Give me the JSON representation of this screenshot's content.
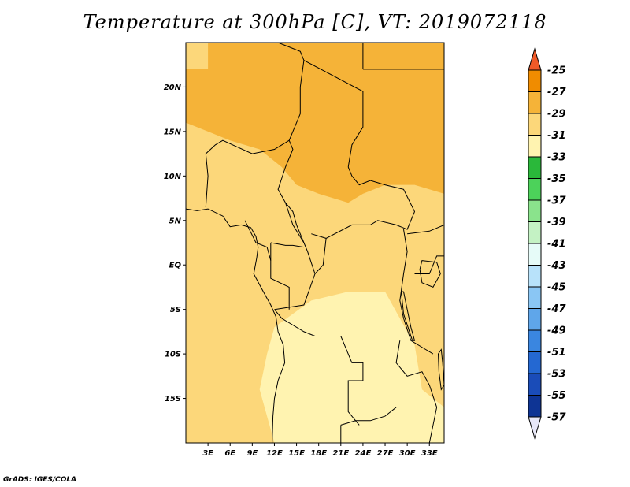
{
  "title": "Temperature at 300hPa [C], VT: 2019072118",
  "credit": "GrADS: IGES/COLA",
  "map": {
    "lon_range": [
      0,
      35
    ],
    "lat_range": [
      -20,
      25
    ],
    "lat_ticks": [
      {
        "value": 20,
        "label": "20N"
      },
      {
        "value": 15,
        "label": "15N"
      },
      {
        "value": 10,
        "label": "10N"
      },
      {
        "value": 5,
        "label": "5N"
      },
      {
        "value": 0,
        "label": "EQ"
      },
      {
        "value": -5,
        "label": "5S"
      },
      {
        "value": -10,
        "label": "10S"
      },
      {
        "value": -15,
        "label": "15S"
      }
    ],
    "lon_ticks": [
      {
        "value": 3,
        "label": "3E"
      },
      {
        "value": 6,
        "label": "6E"
      },
      {
        "value": 9,
        "label": "9E"
      },
      {
        "value": 12,
        "label": "12E"
      },
      {
        "value": 15,
        "label": "15E"
      },
      {
        "value": 18,
        "label": "18E"
      },
      {
        "value": 21,
        "label": "21E"
      },
      {
        "value": 24,
        "label": "24E"
      },
      {
        "value": 27,
        "label": "27E"
      },
      {
        "value": 30,
        "label": "30E"
      },
      {
        "value": 33,
        "label": "33E"
      }
    ],
    "regions": [
      {
        "name": "warm-north-east",
        "color": "#f08c00",
        "points": [
          [
            26,
            25
          ],
          [
            35,
            25
          ],
          [
            35,
            14
          ],
          [
            30,
            15
          ],
          [
            27,
            17
          ],
          [
            26,
            20
          ]
        ]
      },
      {
        "name": "warm-north-center",
        "color": "#f08c00",
        "points": [
          [
            16,
            25
          ],
          [
            25,
            25
          ],
          [
            25,
            22
          ],
          [
            21,
            21
          ],
          [
            17,
            22
          ]
        ]
      },
      {
        "name": "band-north",
        "color": "#f5b338",
        "points": [
          [
            3,
            25
          ],
          [
            35,
            25
          ],
          [
            35,
            8
          ],
          [
            31,
            9
          ],
          [
            27,
            9
          ],
          [
            24,
            8
          ],
          [
            22,
            7
          ],
          [
            18,
            8
          ],
          [
            15,
            9
          ],
          [
            13,
            11
          ],
          [
            10,
            13
          ],
          [
            6,
            14
          ],
          [
            3,
            15
          ],
          [
            0,
            16
          ],
          [
            0,
            22
          ],
          [
            3,
            22
          ]
        ]
      },
      {
        "name": "cool-south-center",
        "color": "#fff3b0",
        "points": [
          [
            12,
            -7
          ],
          [
            17,
            -4
          ],
          [
            22,
            -3
          ],
          [
            27,
            -3
          ],
          [
            29,
            -6
          ],
          [
            31,
            -9
          ],
          [
            32,
            -14
          ],
          [
            35,
            -16
          ],
          [
            35,
            -20
          ],
          [
            12,
            -20
          ],
          [
            10,
            -14
          ],
          [
            11,
            -10
          ]
        ]
      }
    ],
    "base_color": "#fcd77a",
    "borders": [
      [
        [
          12.5,
          25
        ],
        [
          15.5,
          24
        ],
        [
          16,
          23
        ]
      ],
      [
        [
          16,
          23
        ],
        [
          15.5,
          20
        ],
        [
          15.5,
          17
        ],
        [
          14,
          14
        ],
        [
          14.5,
          13
        ],
        [
          13.5,
          11
        ],
        [
          12.5,
          8.5
        ],
        [
          13.5,
          7
        ],
        [
          14.5,
          6
        ],
        [
          15,
          4.5
        ],
        [
          16,
          2.5
        ],
        [
          16.5,
          1.5
        ],
        [
          17.5,
          -1
        ],
        [
          16,
          -4.5
        ],
        [
          12,
          -5
        ]
      ],
      [
        [
          16,
          23
        ],
        [
          24,
          19.5
        ],
        [
          24,
          15.5
        ],
        [
          22.5,
          13.5
        ],
        [
          22,
          11
        ]
      ],
      [
        [
          24,
          25
        ],
        [
          24,
          22
        ]
      ],
      [
        [
          24,
          22
        ],
        [
          37,
          22
        ]
      ],
      [
        [
          14,
          14
        ],
        [
          12,
          13
        ],
        [
          9,
          12.5
        ],
        [
          5,
          14
        ],
        [
          4,
          13.5
        ],
        [
          2.7,
          12.5
        ],
        [
          3,
          10
        ],
        [
          2.7,
          6.5
        ]
      ],
      [
        [
          13.5,
          7
        ],
        [
          14.5,
          4.5
        ],
        [
          16,
          2.5
        ]
      ],
      [
        [
          22,
          11
        ],
        [
          22.5,
          10
        ],
        [
          23.5,
          9
        ],
        [
          25,
          9.5
        ],
        [
          27,
          9
        ],
        [
          29.5,
          8.5
        ],
        [
          31,
          6
        ],
        [
          30,
          4
        ],
        [
          28.5,
          4.5
        ],
        [
          26,
          5
        ],
        [
          25,
          4.5
        ],
        [
          22.5,
          4.5
        ],
        [
          19,
          3
        ],
        [
          17,
          3.5
        ]
      ],
      [
        [
          19,
          3
        ],
        [
          18.6,
          0
        ],
        [
          17.5,
          -1
        ]
      ],
      [
        [
          29.5,
          4
        ],
        [
          30,
          1.5
        ],
        [
          29.5,
          -1
        ],
        [
          29,
          -4
        ],
        [
          29.5,
          -6
        ]
      ],
      [
        [
          29.5,
          -6
        ],
        [
          30.5,
          -8.5
        ],
        [
          32.5,
          -9.5
        ],
        [
          33.5,
          -10
        ]
      ],
      [
        [
          12,
          -5
        ],
        [
          13,
          -6
        ],
        [
          16,
          -7.5
        ],
        [
          17.5,
          -8
        ],
        [
          21,
          -8
        ],
        [
          22.5,
          -11
        ],
        [
          24,
          -11
        ],
        [
          24,
          -13
        ],
        [
          22,
          -13
        ],
        [
          22,
          -16.5
        ],
        [
          23.5,
          -18
        ]
      ],
      [
        [
          21,
          -18
        ],
        [
          23,
          -17.5
        ],
        [
          25,
          -17.5
        ],
        [
          27,
          -17
        ],
        [
          28.5,
          -16
        ]
      ],
      [
        [
          21,
          -18
        ],
        [
          21,
          -20
        ]
      ],
      [
        [
          29,
          -8.5
        ],
        [
          28.5,
          -11
        ],
        [
          30,
          -12.5
        ],
        [
          32,
          -12
        ],
        [
          33,
          -13.5
        ]
      ],
      [
        [
          33,
          -13.5
        ],
        [
          34,
          -16
        ],
        [
          33,
          -20
        ]
      ],
      [
        [
          8,
          5
        ],
        [
          9.5,
          2.5
        ],
        [
          11,
          2
        ],
        [
          11.5,
          0.5
        ]
      ],
      [
        [
          11.5,
          2.5
        ],
        [
          13.5,
          2.2
        ],
        [
          14.5,
          2.2
        ],
        [
          16,
          2
        ]
      ],
      [
        [
          11.5,
          2.5
        ],
        [
          11.5,
          -1.5
        ],
        [
          14,
          -2.5
        ],
        [
          14,
          -5
        ]
      ],
      [
        [
          31,
          -1
        ],
        [
          33,
          -1
        ],
        [
          34,
          1
        ],
        [
          35,
          1
        ]
      ],
      [
        [
          30,
          3.5
        ],
        [
          33,
          3.8
        ],
        [
          35,
          4.5
        ]
      ]
    ],
    "coast": [
      [
        [
          0,
          6.3
        ],
        [
          1.5,
          6.1
        ],
        [
          3,
          6.3
        ],
        [
          5,
          5.5
        ],
        [
          6,
          4.3
        ],
        [
          7.5,
          4.5
        ],
        [
          8.8,
          4.2
        ],
        [
          9.5,
          3.2
        ],
        [
          9.8,
          2
        ],
        [
          9.6,
          0.8
        ],
        [
          9.2,
          -1
        ],
        [
          10.5,
          -3
        ],
        [
          11.5,
          -4.5
        ],
        [
          12.2,
          -5.8
        ],
        [
          12.5,
          -7.5
        ],
        [
          13.2,
          -9
        ],
        [
          13.4,
          -11
        ],
        [
          12.5,
          -13
        ],
        [
          12,
          -15
        ],
        [
          11.8,
          -17
        ],
        [
          11.7,
          -20
        ]
      ]
    ],
    "lakes": [
      [
        [
          29.5,
          -3
        ],
        [
          30,
          -5
        ],
        [
          30.5,
          -7
        ],
        [
          31,
          -8.5
        ],
        [
          30.7,
          -8.5
        ],
        [
          30.1,
          -7
        ],
        [
          29.5,
          -5.5
        ],
        [
          29.2,
          -3
        ]
      ],
      [
        [
          34.6,
          -9.5
        ],
        [
          34.8,
          -11
        ],
        [
          35,
          -13.5
        ],
        [
          34.6,
          -14
        ],
        [
          34.3,
          -12
        ],
        [
          34.2,
          -10
        ]
      ],
      [
        [
          32,
          0.5
        ],
        [
          34,
          0.3
        ],
        [
          34.5,
          -1
        ],
        [
          33.5,
          -2.5
        ],
        [
          32,
          -2
        ],
        [
          31.7,
          -0.5
        ]
      ]
    ]
  },
  "legend": {
    "colors": [
      "#ff5a00",
      "#f08c00",
      "#f5b338",
      "#fcd77a",
      "#fff3b0",
      "#2ab83a",
      "#4cd25a",
      "#8ae38c",
      "#c4f2c4",
      "#e6fbf8",
      "#b8e2fa",
      "#8ac6f4",
      "#5fa6ea",
      "#3a86e0",
      "#2468d2",
      "#1a4cb8",
      "#0e3494",
      "#0b1c70"
    ],
    "labels": [
      "-25",
      "-27",
      "-29",
      "-31",
      "-33",
      "-35",
      "-37",
      "-39",
      "-41",
      "-43",
      "-45",
      "-47",
      "-49",
      "-51",
      "-53",
      "-55",
      "-57"
    ],
    "top_triangle_color": "#f05a28",
    "bottom_triangle_color": "#e8e8f8"
  }
}
